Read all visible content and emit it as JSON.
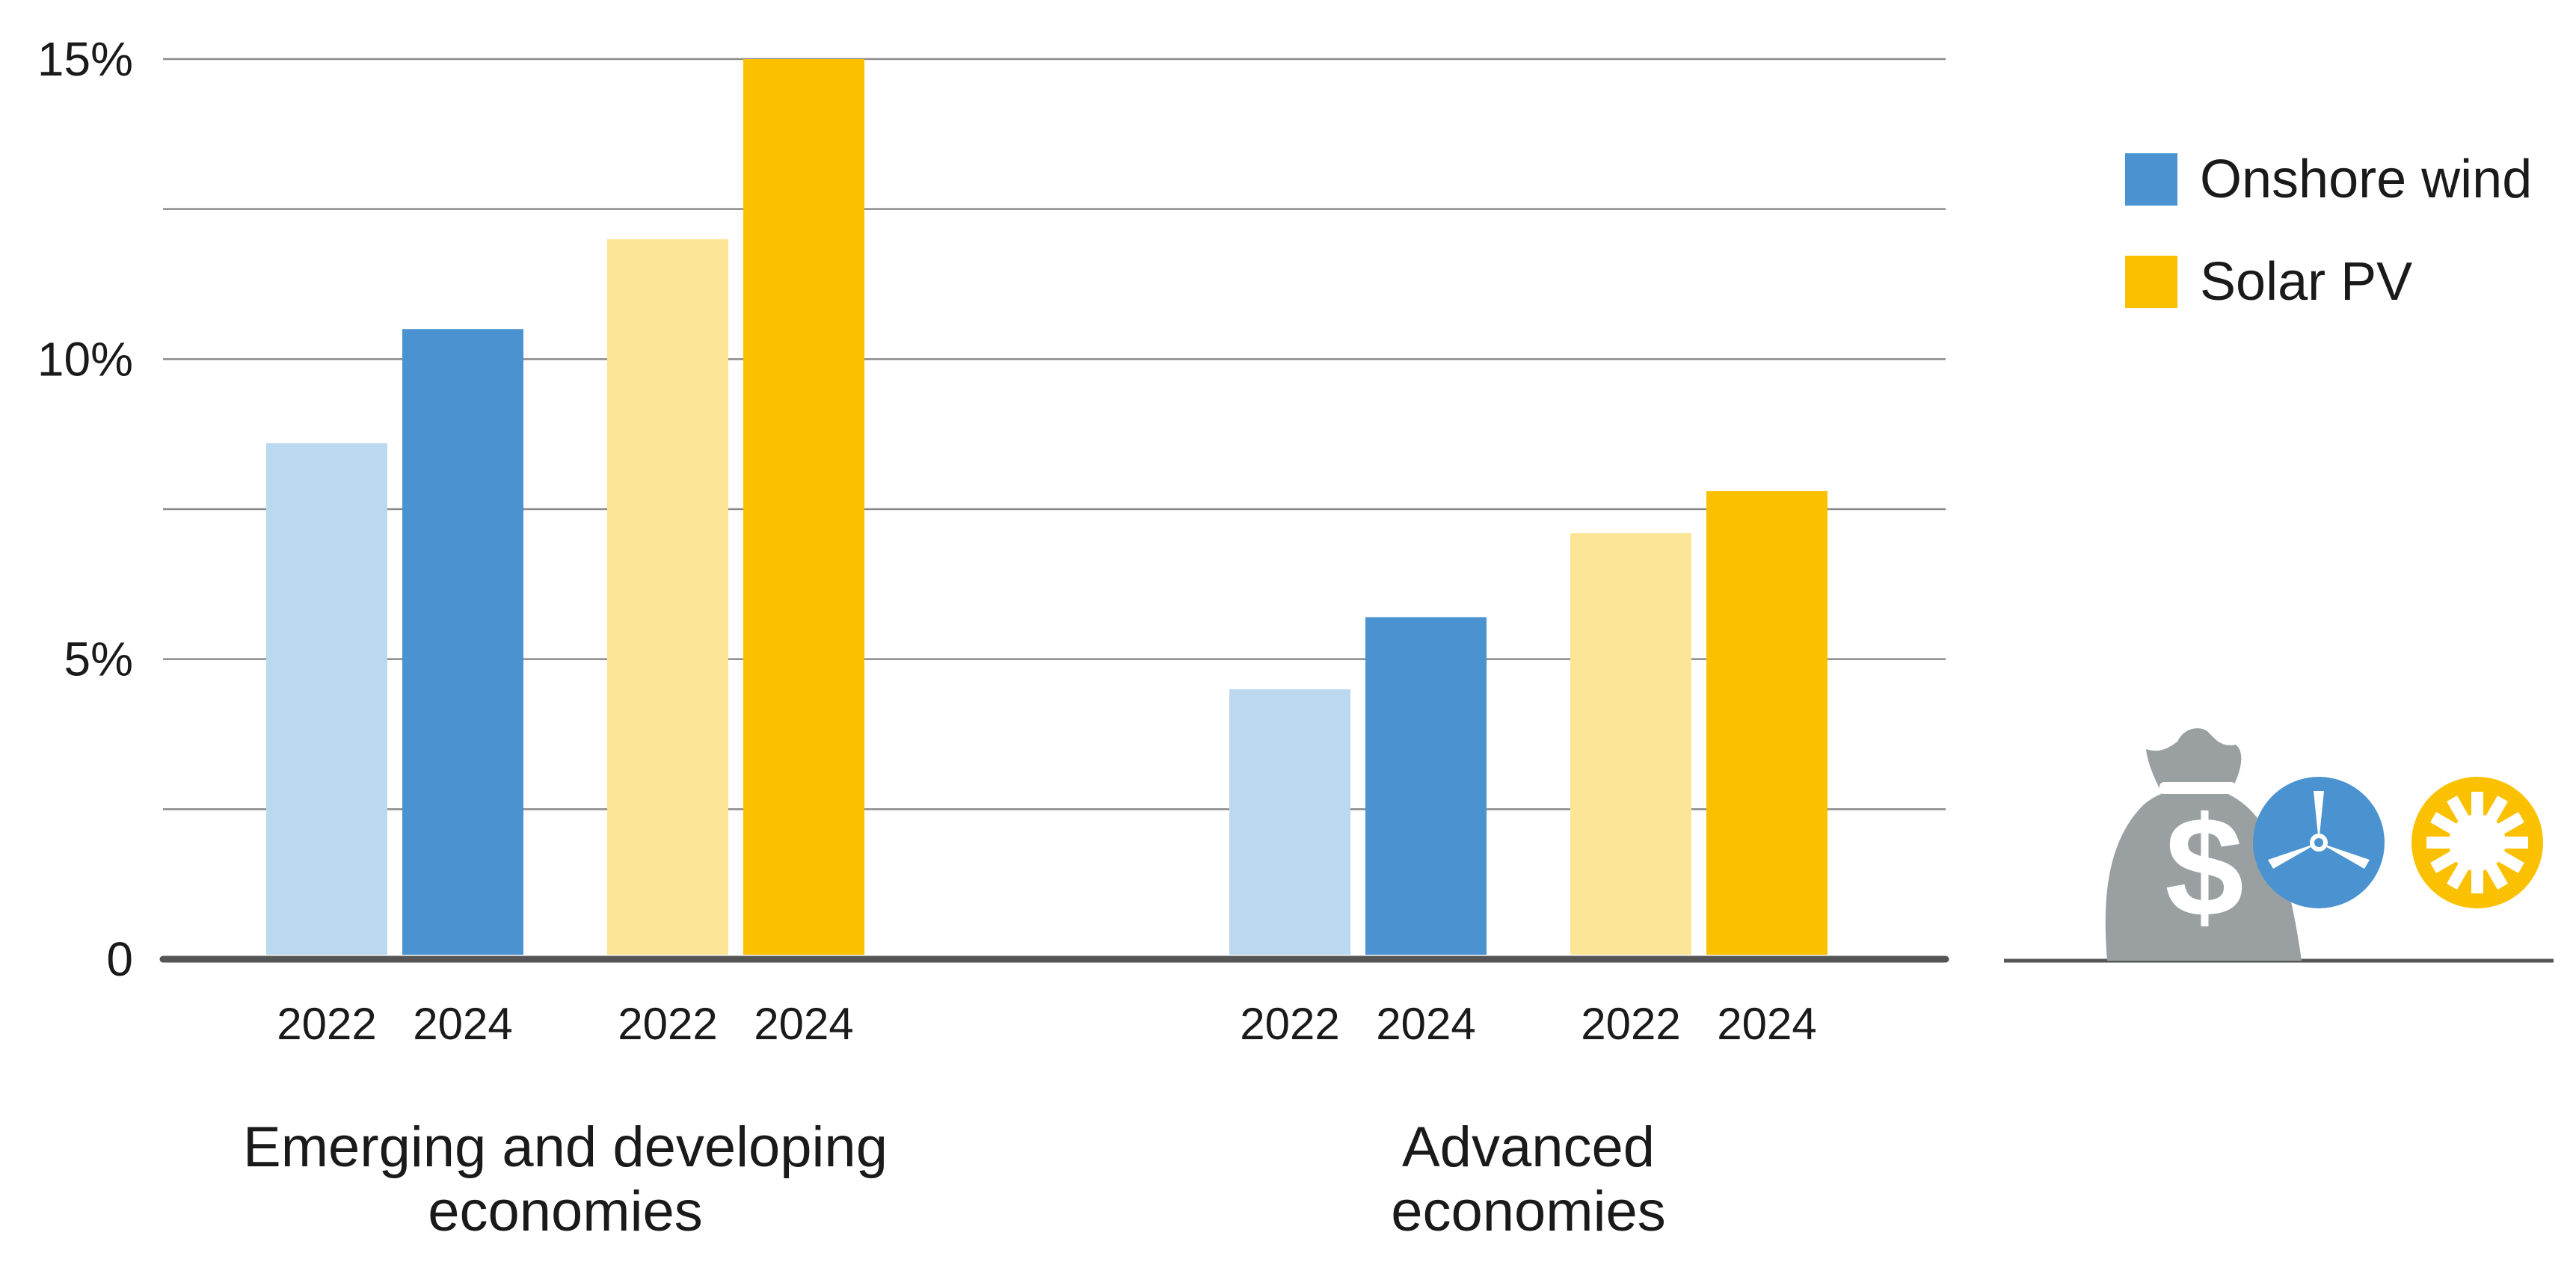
{
  "chart_data": {
    "type": "bar",
    "title": "",
    "xlabel": "",
    "ylabel": "",
    "ylim": [
      0,
      15
    ],
    "yticks": [
      {
        "value": 0,
        "label": "0"
      },
      {
        "value": 5,
        "label": "5%"
      },
      {
        "value": 10,
        "label": "10%"
      },
      {
        "value": 15,
        "label": "15%"
      }
    ],
    "gridlines": [
      2.5,
      5,
      7.5,
      10,
      12.5,
      15
    ],
    "grid": true,
    "legend_position": "top-right",
    "legend": [
      {
        "name": "Onshore wind",
        "color": "#4a93d0"
      },
      {
        "name": "Solar PV",
        "color": "#fbc100"
      }
    ],
    "groups": [
      {
        "label_lines": [
          "Emerging and developing",
          "economies"
        ],
        "bars": [
          {
            "series": "Onshore wind",
            "year": "2022",
            "value": 8.6,
            "color": "#bcd8ee"
          },
          {
            "series": "Onshore wind",
            "year": "2024",
            "value": 10.5,
            "color": "#4a93d0"
          },
          {
            "series": "Solar PV",
            "year": "2022",
            "value": 12.0,
            "color": "#fde598"
          },
          {
            "series": "Solar PV",
            "year": "2024",
            "value": 15.0,
            "color": "#fbc100"
          }
        ]
      },
      {
        "label_lines": [
          "Advanced",
          "economies"
        ],
        "bars": [
          {
            "series": "Onshore wind",
            "year": "2022",
            "value": 4.5,
            "color": "#bcd8ee"
          },
          {
            "series": "Onshore wind",
            "year": "2024",
            "value": 5.7,
            "color": "#4a93d0"
          },
          {
            "series": "Solar PV",
            "year": "2022",
            "value": 7.1,
            "color": "#fde598"
          },
          {
            "series": "Solar PV",
            "year": "2024",
            "value": 7.8,
            "color": "#fbc100"
          }
        ]
      }
    ]
  },
  "icons": [
    "money-bag-icon",
    "wind-turbine-icon",
    "sun-icon"
  ],
  "colors": {
    "grid": "#8a8a8a",
    "axis": "#555555",
    "icon_gray": "#9aa0a2",
    "icon_blue": "#4a93d0",
    "icon_yellow": "#fbc100"
  }
}
